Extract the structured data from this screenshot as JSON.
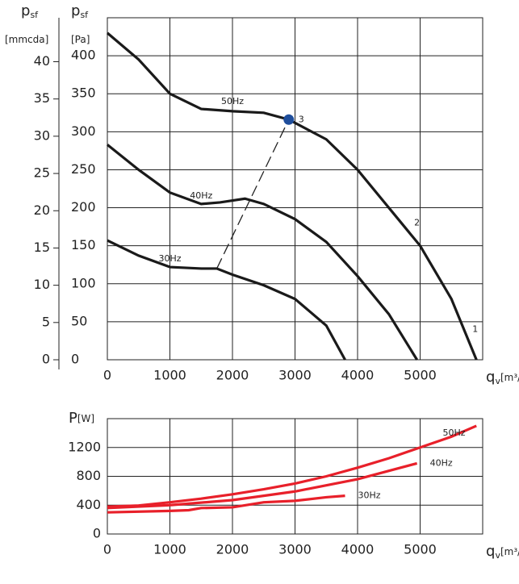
{
  "chart_data": [
    {
      "type": "line",
      "x_label": {
        "symbol": "q",
        "subscript": "v",
        "unit": "[m³/h]"
      },
      "y_label": {
        "symbol": "p",
        "subscript": "sf",
        "unit": "[Pa]"
      },
      "y2_label": {
        "symbol": "p",
        "subscript": "sf",
        "unit": "[mmcda]"
      },
      "xlim": [
        0,
        6000
      ],
      "xticks": [
        0,
        1000,
        2000,
        3000,
        4000,
        5000
      ],
      "ylim": [
        0,
        450
      ],
      "yticks": [
        0,
        50,
        100,
        150,
        200,
        250,
        300,
        350,
        400
      ],
      "y2lim": [
        0,
        45.9
      ],
      "y2ticks": [
        0,
        5,
        10,
        15,
        20,
        25,
        30,
        35,
        40
      ],
      "grid": true,
      "series": [
        {
          "name": "50Hz",
          "color": "#1a1a1a",
          "x": [
            0,
            500,
            1000,
            1500,
            2000,
            2500,
            2900,
            3500,
            4000,
            4500,
            5000,
            5500,
            5900
          ],
          "values": [
            430,
            395,
            350,
            330,
            327,
            325,
            316,
            290,
            250,
            200,
            150,
            80,
            0
          ]
        },
        {
          "name": "40Hz",
          "color": "#1a1a1a",
          "x": [
            0,
            500,
            1000,
            1500,
            1800,
            2200,
            2500,
            3000,
            3500,
            4000,
            4500,
            4950
          ],
          "values": [
            283,
            250,
            220,
            205,
            207,
            212,
            205,
            185,
            155,
            110,
            60,
            0
          ]
        },
        {
          "name": "30Hz",
          "color": "#1a1a1a",
          "x": [
            0,
            500,
            1000,
            1500,
            1750,
            2000,
            2500,
            3000,
            3500,
            3800
          ],
          "values": [
            157,
            137,
            122,
            120,
            120,
            112,
            98,
            80,
            45,
            0
          ]
        }
      ],
      "system_curve": {
        "x": [
          1750,
          2900
        ],
        "values": [
          120,
          316
        ]
      },
      "operating_point": {
        "x": 2900,
        "value": 316,
        "color": "#1f4e9c"
      },
      "point_labels": [
        {
          "label": "1",
          "x": 5880,
          "value": 40
        },
        {
          "label": "2",
          "x": 4950,
          "value": 180
        },
        {
          "label": "3",
          "x": 3100,
          "value": 316
        }
      ]
    },
    {
      "type": "line",
      "x_label": {
        "symbol": "q",
        "subscript": "v",
        "unit": "[m³/h]"
      },
      "y_label": {
        "symbol": "P",
        "unit": "[W]"
      },
      "xlim": [
        0,
        6000
      ],
      "xticks": [
        0,
        1000,
        2000,
        3000,
        4000,
        5000
      ],
      "ylim": [
        0,
        1600
      ],
      "yticks": [
        0,
        400,
        800,
        1200
      ],
      "grid": true,
      "color": "#e8202a",
      "series": [
        {
          "name": "50Hz",
          "color": "#e8202a",
          "x": [
            0,
            500,
            1000,
            1500,
            2000,
            2500,
            3000,
            3500,
            4000,
            4500,
            5000,
            5500,
            5900
          ],
          "values": [
            380,
            395,
            440,
            490,
            550,
            620,
            700,
            800,
            920,
            1050,
            1200,
            1350,
            1500
          ]
        },
        {
          "name": "40Hz",
          "color": "#e8202a",
          "x": [
            0,
            1000,
            2000,
            3000,
            4000,
            4950
          ],
          "values": [
            360,
            400,
            470,
            590,
            760,
            980
          ]
        },
        {
          "name": "30Hz",
          "color": "#e8202a",
          "x": [
            0,
            1000,
            1300,
            1500,
            2000,
            2500,
            3000,
            3500,
            3800
          ],
          "values": [
            300,
            320,
            330,
            360,
            370,
            440,
            460,
            510,
            530
          ]
        }
      ]
    }
  ]
}
